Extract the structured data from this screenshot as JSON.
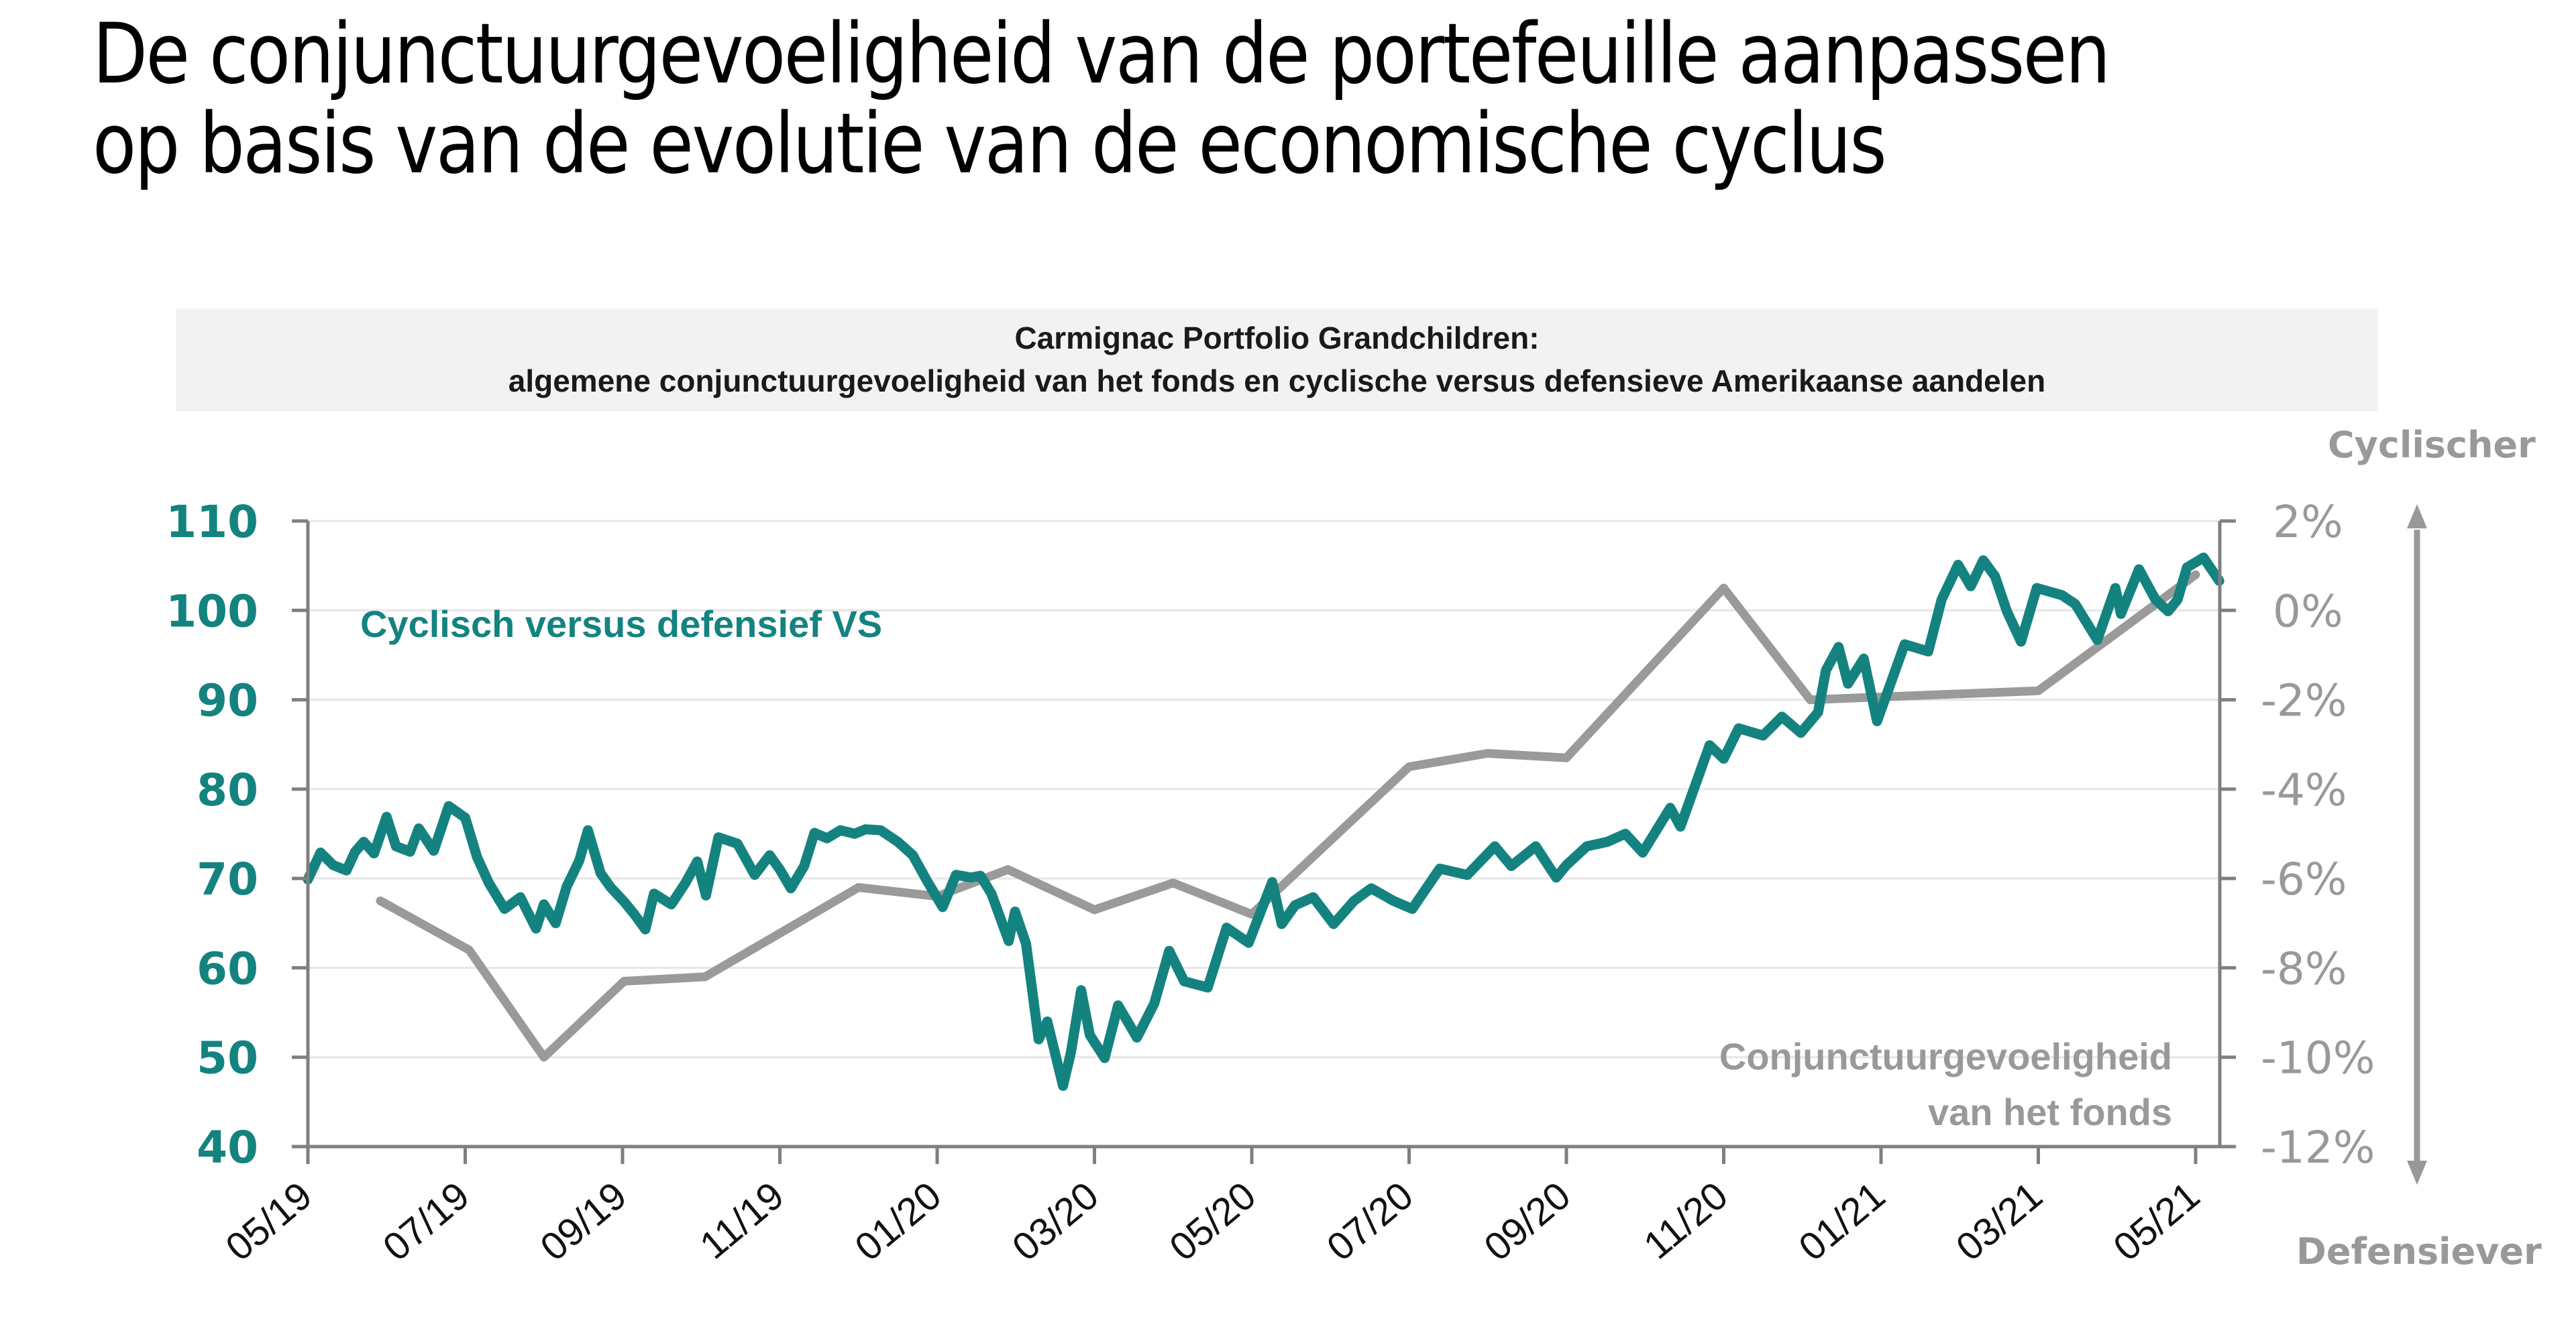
{
  "header": {
    "title_line1": "De conjunctuurgevoeligheid van de portefeuille aanpassen",
    "title_line2": "op basis van de evolutie van de economische cyclus"
  },
  "colors": {
    "teal": "#148380",
    "gray_line": "#9a9a9a",
    "axis": "#7f7f7f",
    "grid": "#e6e6e6",
    "banner_bg": "#f2f2f2"
  },
  "chart_data": {
    "type": "line",
    "title": "Carmignac Portfolio Grandchildren:",
    "subtitle": "algemene conjunctuurgevoeligheid van het fonds en cyclische versus defensieve Amerikaanse aandelen",
    "x_tick_labels": [
      "05/19",
      "07/19",
      "09/19",
      "11/19",
      "01/20",
      "03/20",
      "05/20",
      "07/20",
      "09/20",
      "11/20",
      "01/21",
      "03/21",
      "05/21"
    ],
    "x_unit": "months since 05/2019",
    "xlim": [
      0,
      24.3
    ],
    "y_left": {
      "ticks": [
        40,
        50,
        60,
        70,
        80,
        90,
        100,
        110
      ],
      "tick_labels": [
        "40",
        "50",
        "60",
        "70",
        "80",
        "90",
        "100",
        "110"
      ],
      "ylim": [
        40,
        110
      ]
    },
    "y_right": {
      "ticks": [
        -12,
        -10,
        -8,
        -6,
        -4,
        -2,
        0,
        2
      ],
      "tick_labels": [
        "-12%",
        "-10%",
        "-8%",
        "-6%",
        "-4%",
        "-2%",
        "0%",
        "2%"
      ],
      "ylim": [
        -12,
        2
      ]
    },
    "direction_labels": {
      "top": "Cyclischer",
      "bottom": "Defensiever"
    },
    "grid": "horizontal",
    "series": [
      {
        "name": "Cyclisch versus defensief VS",
        "axis": "left",
        "color": "#148380",
        "x": [
          0,
          0.16,
          0.32,
          0.49,
          0.6,
          0.71,
          0.84,
          1.0,
          1.12,
          1.3,
          1.41,
          1.6,
          1.79,
          2.0,
          2.15,
          2.3,
          2.5,
          2.7,
          2.9,
          3.0,
          3.15,
          3.29,
          3.45,
          3.56,
          3.72,
          3.85,
          4.02,
          4.15,
          4.29,
          4.4,
          4.62,
          4.8,
          4.95,
          5.06,
          5.22,
          5.46,
          5.68,
          5.87,
          6.0,
          6.14,
          6.31,
          6.44,
          6.6,
          6.77,
          6.95,
          7.09,
          7.28,
          7.5,
          7.69,
          7.88,
          8.07,
          8.24,
          8.43,
          8.55,
          8.69,
          8.91,
          8.99,
          9.13,
          9.29,
          9.4,
          9.6,
          9.7,
          9.83,
          9.94,
          10.13,
          10.3,
          10.54,
          10.76,
          10.95,
          11.14,
          11.44,
          11.68,
          11.96,
          12.26,
          12.38,
          12.55,
          12.78,
          13.04,
          13.3,
          13.52,
          13.8,
          14.04,
          14.39,
          14.74,
          15.09,
          15.3,
          15.61,
          15.87,
          16.0,
          16.26,
          16.52,
          16.75,
          16.97,
          17.32,
          17.45,
          17.82,
          18.0,
          18.19,
          18.5,
          18.74,
          18.98,
          19.2,
          19.3,
          19.46,
          19.58,
          19.78,
          19.95,
          20.3,
          20.6,
          20.77,
          20.98,
          21.14,
          21.3,
          21.45,
          21.6,
          21.78,
          21.98,
          22.3,
          22.47,
          22.75,
          22.98,
          23.05,
          23.28,
          23.49,
          23.65,
          23.77,
          23.89,
          24.1,
          24.3
        ],
        "values": [
          69.9,
          72.9,
          71.5,
          70.9,
          73.0,
          74.1,
          72.8,
          76.9,
          73.6,
          73.0,
          75.6,
          73.1,
          78.1,
          76.8,
          72.4,
          69.5,
          66.6,
          67.9,
          64.4,
          67.1,
          65.0,
          69.1,
          72.0,
          75.4,
          70.6,
          69.0,
          67.4,
          66.0,
          64.3,
          68.3,
          67.1,
          69.5,
          71.9,
          68.1,
          74.6,
          73.9,
          70.4,
          72.6,
          71.0,
          68.9,
          71.4,
          75.1,
          74.5,
          75.4,
          75.0,
          75.5,
          75.4,
          74.1,
          72.6,
          69.6,
          66.8,
          70.4,
          70.1,
          70.3,
          68.3,
          63.0,
          66.3,
          62.7,
          52.0,
          54.0,
          46.8,
          50.5,
          57.5,
          52.5,
          49.9,
          55.8,
          52.2,
          56.0,
          61.9,
          58.5,
          57.8,
          64.5,
          62.8,
          69.6,
          64.9,
          67.0,
          67.9,
          64.9,
          67.5,
          68.9,
          67.5,
          66.6,
          71.1,
          70.4,
          73.6,
          71.4,
          73.6,
          70.1,
          71.5,
          73.6,
          74.1,
          75.0,
          72.9,
          77.9,
          75.8,
          84.9,
          83.4,
          86.8,
          86.0,
          88.1,
          86.3,
          88.6,
          93.3,
          95.9,
          91.8,
          94.6,
          87.6,
          96.2,
          95.4,
          101.2,
          105.1,
          102.7,
          105.6,
          103.8,
          99.9,
          96.5,
          102.5,
          101.7,
          100.7,
          96.7,
          102.5,
          99.6,
          104.6,
          101.2,
          99.9,
          101.2,
          104.8,
          105.9,
          103.3
        ]
      },
      {
        "name": "Conjunctuurgevoeligheid van het fonds",
        "axis": "right",
        "color": "#9a9a9a",
        "x": [
          0.92,
          2.05,
          3.0,
          4.02,
          5.05,
          7.0,
          8.0,
          8.9,
          10.0,
          11.0,
          12.0,
          14.0,
          15.0,
          16.0,
          18.0,
          19.1,
          22.0,
          24.0
        ],
        "values": [
          -6.5,
          -7.6,
          -10.0,
          -8.3,
          -8.2,
          -6.2,
          -6.4,
          -5.8,
          -6.7,
          -6.1,
          -6.8,
          -3.5,
          -3.2,
          -3.3,
          0.5,
          -2.0,
          -1.8,
          0.8
        ]
      }
    ],
    "annotations": {
      "teal_label": "Cyclisch versus defensief VS",
      "gray_label_line1": "Conjunctuurgevoeligheid",
      "gray_label_line2": "van het fonds"
    }
  }
}
